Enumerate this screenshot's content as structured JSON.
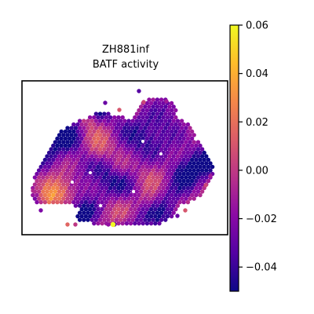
{
  "chart_data": {
    "type": "heatmap",
    "title": "ZH881inf",
    "subtitle": "BATF activity",
    "xlabel": "",
    "ylabel": "",
    "grid": false,
    "colormap": "plasma",
    "colorbar": {
      "range": [
        -0.05,
        0.06
      ],
      "ticks": [
        0.06,
        0.04,
        0.02,
        0.0,
        -0.02,
        -0.04
      ],
      "tick_labels": [
        "0.06",
        "0.04",
        "0.02",
        "0.00",
        "−0.02",
        "−0.04"
      ]
    },
    "approx_value_range": [
      -0.05,
      0.06
    ],
    "note_values": "spatial hex-spot map; per-spot values not individually labeled"
  },
  "colors": {
    "plasma_stops": [
      "#0d0887",
      "#5302a3",
      "#8b0aa5",
      "#b83289",
      "#db5c68",
      "#f48849",
      "#febd2a",
      "#f0f921"
    ],
    "frame": "#000000",
    "spot_hole": "#ffffff"
  }
}
